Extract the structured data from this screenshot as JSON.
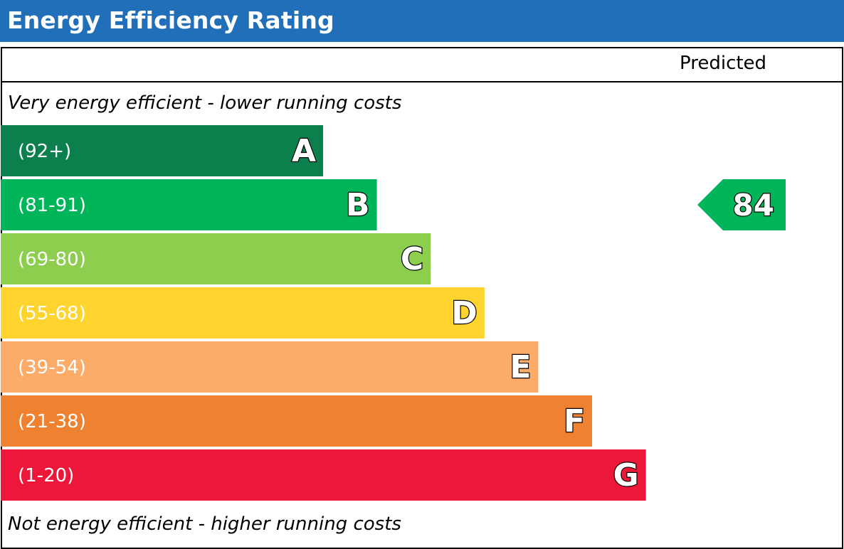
{
  "header": {
    "title": "Energy Efficiency Rating"
  },
  "columns": {
    "predicted_label": "Predicted"
  },
  "captions": {
    "top": "Very energy efficient - lower running costs",
    "bottom": "Not energy efficient - higher running costs"
  },
  "chart_data": {
    "type": "bar",
    "title": "Energy Efficiency Rating",
    "categories": [
      "A",
      "B",
      "C",
      "D",
      "E",
      "F",
      "G"
    ],
    "ranges": [
      "(92+)",
      "(81-91)",
      "(69-80)",
      "(55-68)",
      "(39-54)",
      "(21-38)",
      "(1-20)"
    ],
    "colors": [
      "#0b7f4c",
      "#00b45a",
      "#8dce4f",
      "#ffd42f",
      "#fcab69",
      "#ef8230",
      "#ec1739"
    ],
    "predicted": {
      "value": 84,
      "band": "B",
      "color": "#00b45a"
    }
  }
}
